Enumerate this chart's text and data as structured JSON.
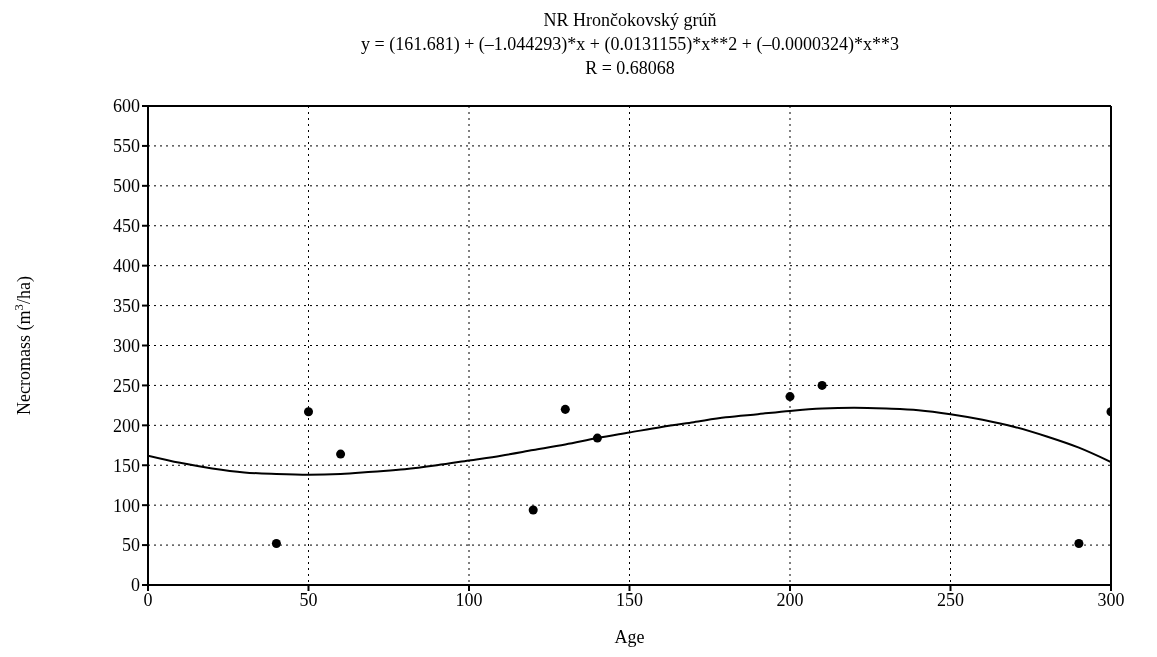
{
  "chart_data": {
    "type": "scatter",
    "title": "NR Hrončokovský grúň",
    "subtitle": "y = (161.681) + (–1.044293)*x + (0.0131155)*x**2 + (–0.0000324)*x**3",
    "annotations": [
      "R = 0.68068"
    ],
    "xlabel": "Age",
    "ylabel": "Necromass (m$^{3}$/ha)",
    "xlim": [
      0,
      300
    ],
    "xticks": [
      0,
      50,
      100,
      150,
      200,
      250,
      300
    ],
    "ylim": [
      0,
      600
    ],
    "yticks": [
      0,
      50,
      100,
      150,
      200,
      250,
      300,
      350,
      400,
      450,
      500,
      550,
      600
    ],
    "grid": true,
    "legend": false,
    "series": [
      {
        "color": "#000000",
        "marker": "circle",
        "x": [
          40,
          50,
          60,
          120,
          130,
          140,
          200,
          210,
          290,
          300
        ],
        "values": [
          52,
          217,
          164,
          94,
          220,
          184,
          236,
          250,
          52,
          217
        ]
      },
      {
        "type": "line",
        "color": "#000000",
        "x": [
          0,
          10,
          20,
          30,
          40,
          50,
          60,
          70,
          80,
          90,
          100,
          110,
          120,
          130,
          140,
          150,
          160,
          170,
          180,
          190,
          200,
          210,
          220,
          230,
          240,
          250,
          260,
          270,
          280,
          290,
          300
        ],
        "values": [
          162,
          153,
          146,
          141,
          139,
          138,
          139,
          142,
          145,
          150,
          156,
          162,
          169,
          176,
          184,
          191,
          198,
          204,
          210,
          214,
          218,
          221,
          222,
          221,
          219,
          214,
          207,
          198,
          186,
          172,
          154
        ]
      }
    ]
  }
}
